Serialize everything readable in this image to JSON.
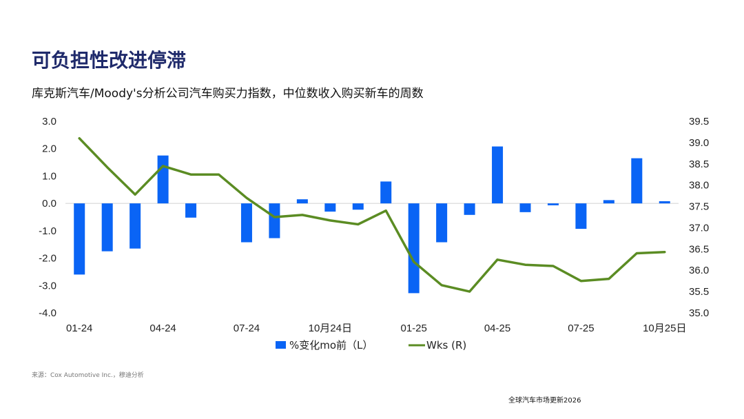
{
  "page": {
    "title": "可负担性改进停滞",
    "subtitle": "库克斯汽车/Moody's分析公司汽车购买力指数，中位数收入购买新车的周数",
    "source": "来源：Cox Automotive Inc.，穆迪分析",
    "footer": "全球汽车市场更新2026"
  },
  "chart_data": {
    "type": "bar+line",
    "categories": [
      "01-24",
      "02-24",
      "03-24",
      "04-24",
      "05-24",
      "06-24",
      "07-24",
      "08-24",
      "09-24",
      "10月24日",
      "11-24",
      "12-24",
      "01-25",
      "02-25",
      "03-25",
      "04-25",
      "05-25",
      "06-25",
      "07-25",
      "08-25",
      "09-25",
      "10月25日"
    ],
    "x_tick_labels": [
      {
        "index": 0,
        "label": "01-24"
      },
      {
        "index": 3,
        "label": "04-24"
      },
      {
        "index": 6,
        "label": "07-24"
      },
      {
        "index": 9,
        "label": "10月24日"
      },
      {
        "index": 12,
        "label": "01-25"
      },
      {
        "index": 15,
        "label": "04-25"
      },
      {
        "index": 18,
        "label": "07-25"
      },
      {
        "index": 21,
        "label": "10月25日"
      }
    ],
    "series": [
      {
        "name": "%变化mo前（L）",
        "type": "bar",
        "axis": "left",
        "color": "#0a64f5",
        "values": [
          -2.6,
          -1.75,
          -1.65,
          1.75,
          -0.52,
          null,
          -1.42,
          -1.27,
          0.15,
          -0.3,
          -0.23,
          0.8,
          -3.28,
          -1.42,
          -0.42,
          2.08,
          -0.32,
          -0.07,
          -0.93,
          0.12,
          1.65,
          0.08
        ]
      },
      {
        "name": "Wks (R)",
        "type": "line",
        "axis": "right",
        "color": "#5b8c23",
        "values": [
          39.1,
          38.42,
          37.78,
          38.45,
          38.25,
          38.25,
          37.7,
          37.25,
          37.3,
          37.17,
          37.08,
          37.4,
          36.2,
          35.65,
          35.5,
          36.25,
          36.13,
          36.1,
          35.75,
          35.8,
          36.4,
          36.43
        ]
      }
    ],
    "y_left": {
      "min": -4.0,
      "max": 3.0,
      "step": 1.0,
      "ticks": [
        "3.0",
        "2.0",
        "1.0",
        "0.0",
        "-1.0",
        "-2.0",
        "-3.0",
        "-4.0"
      ]
    },
    "y_right": {
      "min": 35.0,
      "max": 39.5,
      "step": 0.5,
      "ticks": [
        "39.5",
        "39.0",
        "38.5",
        "38.0",
        "37.5",
        "37.0",
        "36.5",
        "36.0",
        "35.5",
        "35.0"
      ]
    },
    "grid": false,
    "legend_position": "bottom"
  }
}
